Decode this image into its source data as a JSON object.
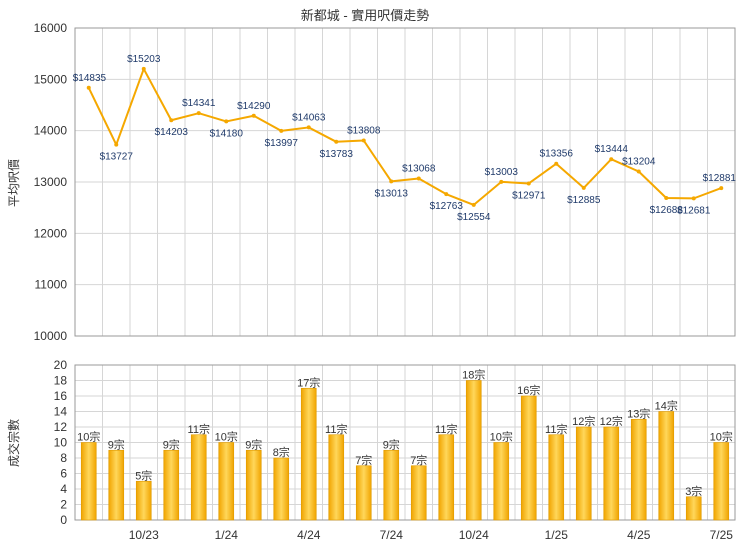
{
  "chart_data": [
    {
      "type": "line",
      "title": "新都城 - 實用呎價走勢",
      "ylabel": "平均呎價",
      "ylim": [
        10000,
        16000
      ],
      "yticks": [
        10000,
        11000,
        12000,
        13000,
        14000,
        15000,
        16000
      ],
      "grid": true,
      "legend": "none",
      "color": "#f5a800",
      "series": [
        {
          "values": [
            14835,
            13727,
            15203,
            14203,
            14341,
            14180,
            14290,
            13997,
            14063,
            13783,
            13808,
            13013,
            13068,
            12763,
            12554,
            13003,
            12971,
            13356,
            12885,
            13444,
            13204,
            12688,
            12681,
            12881
          ],
          "labels": [
            "$14835",
            "$13727",
            "$15203",
            "$14203",
            "$14341",
            "$14180",
            "$14290",
            "$13997",
            "$14063",
            "$13783",
            "$13808",
            "$13013",
            "$13068",
            "$12763",
            "$12554",
            "$13003",
            "$12971",
            "$13356",
            "$12885",
            "$13444",
            "$13204",
            "$12688",
            "$12681",
            "$12881"
          ]
        }
      ]
    },
    {
      "type": "bar",
      "ylabel": "成交宗數",
      "ylim": [
        0,
        20
      ],
      "yticks": [
        0,
        2,
        4,
        6,
        8,
        10,
        12,
        14,
        16,
        18,
        20
      ],
      "xticks": [
        "10/23",
        "1/24",
        "4/24",
        "7/24",
        "10/24",
        "1/25",
        "4/25",
        "7/25"
      ],
      "grid": true,
      "legend": "none",
      "color": "#f5a800",
      "series": [
        {
          "values": [
            10,
            9,
            5,
            9,
            11,
            10,
            9,
            8,
            17,
            11,
            7,
            9,
            7,
            11,
            18,
            10,
            16,
            11,
            12,
            12,
            13,
            14,
            3,
            10
          ],
          "labels": [
            "10宗",
            "9宗",
            "5宗",
            "9宗",
            "11宗",
            "10宗",
            "9宗",
            "8宗",
            "17宗",
            "11宗",
            "7宗",
            "9宗",
            "7宗",
            "11宗",
            "18宗",
            "10宗",
            "16宗",
            "11宗",
            "12宗",
            "12宗",
            "13宗",
            "14宗",
            "3宗",
            "10宗"
          ]
        }
      ]
    }
  ]
}
